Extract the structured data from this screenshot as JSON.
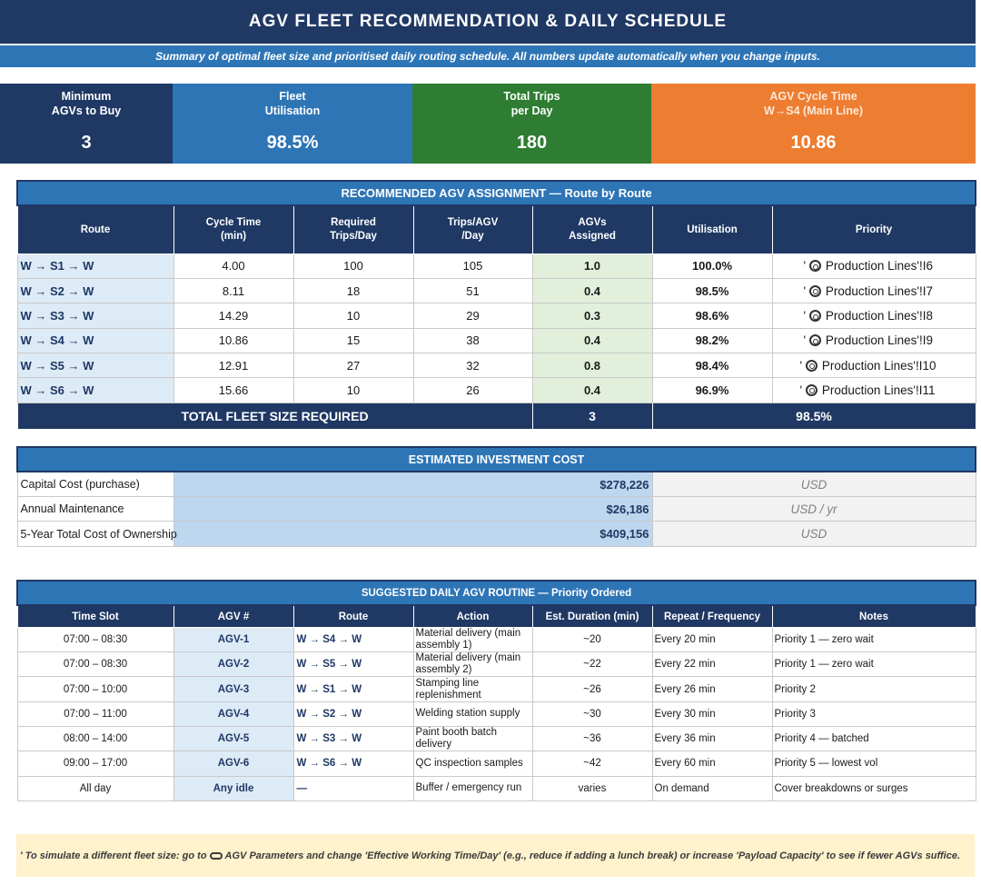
{
  "header": {
    "title": "AGV FLEET RECOMMENDATION & DAILY SCHEDULE",
    "subtitle": "Summary of optimal fleet size and prioritised daily routing schedule. All numbers update automatically when you change inputs."
  },
  "kpis": [
    {
      "label_line1": "Minimum",
      "label_line2": "AGVs to Buy",
      "value": "3",
      "color": "#1f3864"
    },
    {
      "label_line1": "Fleet",
      "label_line2": "Utilisation",
      "value": "98.5%",
      "color": "#2e75b6"
    },
    {
      "label_line1": "Total Trips",
      "label_line2": "per Day",
      "value": "180",
      "color": "#2e7d32"
    },
    {
      "label_line1": "AGV Cycle Time",
      "label_line2": "W→S4 (Main Line)",
      "value": "10.86",
      "color": "#ed7d31"
    }
  ],
  "assignment": {
    "title": "RECOMMENDED AGV ASSIGNMENT  —  Route by Route",
    "columns": [
      {
        "l1": "Route",
        "l2": ""
      },
      {
        "l1": "Cycle Time",
        "l2": "(min)"
      },
      {
        "l1": "Required",
        "l2": "Trips/Day"
      },
      {
        "l1": "Trips/AGV",
        "l2": "/Day"
      },
      {
        "l1": "AGVs",
        "l2": "Assigned"
      },
      {
        "l1": "Utilisation",
        "l2": ""
      },
      {
        "l1": "Priority",
        "l2": ""
      }
    ],
    "rows": [
      {
        "route": "W → S1 → W",
        "cycle": "4.00",
        "req": "100",
        "trips": "105",
        "agvs": "1.0",
        "util": "100.0%",
        "priority": "Production Lines'!I6"
      },
      {
        "route": "W → S2 → W",
        "cycle": "8.11",
        "req": "18",
        "trips": "51",
        "agvs": "0.4",
        "util": "98.5%",
        "priority": "Production Lines'!I7"
      },
      {
        "route": "W → S3 → W",
        "cycle": "14.29",
        "req": "10",
        "trips": "29",
        "agvs": "0.3",
        "util": "98.6%",
        "priority": "Production Lines'!I8"
      },
      {
        "route": "W → S4 → W",
        "cycle": "10.86",
        "req": "15",
        "trips": "38",
        "agvs": "0.4",
        "util": "98.2%",
        "priority": "Production Lines'!I9"
      },
      {
        "route": "W → S5 → W",
        "cycle": "12.91",
        "req": "27",
        "trips": "32",
        "agvs": "0.8",
        "util": "98.4%",
        "priority": "Production Lines'!I10"
      },
      {
        "route": "W → S6 → W",
        "cycle": "15.66",
        "req": "10",
        "trips": "26",
        "agvs": "0.4",
        "util": "96.9%",
        "priority": "Production Lines'!I11"
      }
    ],
    "priority_prefix": "'",
    "total_label": "TOTAL  FLEET  SIZE  REQUIRED",
    "total_agvs": "3",
    "total_util": "98.5%"
  },
  "investment": {
    "title": "ESTIMATED INVESTMENT COST",
    "rows": [
      {
        "name": "Capital Cost (purchase)",
        "amount": "$278,226",
        "unit": "USD"
      },
      {
        "name": "Annual Maintenance",
        "amount": "$26,186",
        "unit": "USD / yr"
      },
      {
        "name": "5-Year Total Cost of Ownership",
        "amount": "$409,156",
        "unit": "USD"
      }
    ]
  },
  "routine": {
    "title": "SUGGESTED DAILY AGV ROUTINE  —  Priority Ordered",
    "columns": [
      "Time Slot",
      "AGV #",
      "Route",
      "Action",
      "Est. Duration (min)",
      "Repeat / Frequency",
      "Notes"
    ],
    "rows": [
      {
        "slot": "07:00 – 08:30",
        "agv": "AGV-1",
        "route": "W → S4 → W",
        "action": "Material delivery (main assembly 1)",
        "duration": "~20",
        "freq": "Every 20 min",
        "notes": "Priority 1 — zero wait"
      },
      {
        "slot": "07:00 – 08:30",
        "agv": "AGV-2",
        "route": "W → S5 → W",
        "action": "Material delivery (main assembly 2)",
        "duration": "~22",
        "freq": "Every 22 min",
        "notes": "Priority 1 — zero wait"
      },
      {
        "slot": "07:00 – 10:00",
        "agv": "AGV-3",
        "route": "W → S1 → W",
        "action": "Stamping line replenishment",
        "duration": "~26",
        "freq": "Every 26 min",
        "notes": "Priority 2"
      },
      {
        "slot": "07:00 – 11:00",
        "agv": "AGV-4",
        "route": "W → S2 → W",
        "action": "Welding station supply",
        "duration": "~30",
        "freq": "Every 30 min",
        "notes": "Priority 3"
      },
      {
        "slot": "08:00 – 14:00",
        "agv": "AGV-5",
        "route": "W → S3 → W",
        "action": "Paint booth batch delivery",
        "duration": "~36",
        "freq": "Every 36 min",
        "notes": "Priority 4 — batched"
      },
      {
        "slot": "09:00 – 17:00",
        "agv": "AGV-6",
        "route": "W → S6 → W",
        "action": "QC inspection samples",
        "duration": "~42",
        "freq": "Every 60 min",
        "notes": "Priority 5 — lowest vol"
      },
      {
        "slot": "All day",
        "agv": "Any idle",
        "route": "—",
        "action": "Buffer / emergency run",
        "duration": "varies",
        "freq": "On demand",
        "notes": "Cover breakdowns or surges"
      }
    ]
  },
  "tip": {
    "prefix": "' To simulate a different fleet size: go to",
    "text": "AGV Parameters and change 'Effective Working Time/Day' (e.g., reduce if adding a lunch break) or increase 'Payload Capacity' to see if fewer AGVs suffice."
  }
}
